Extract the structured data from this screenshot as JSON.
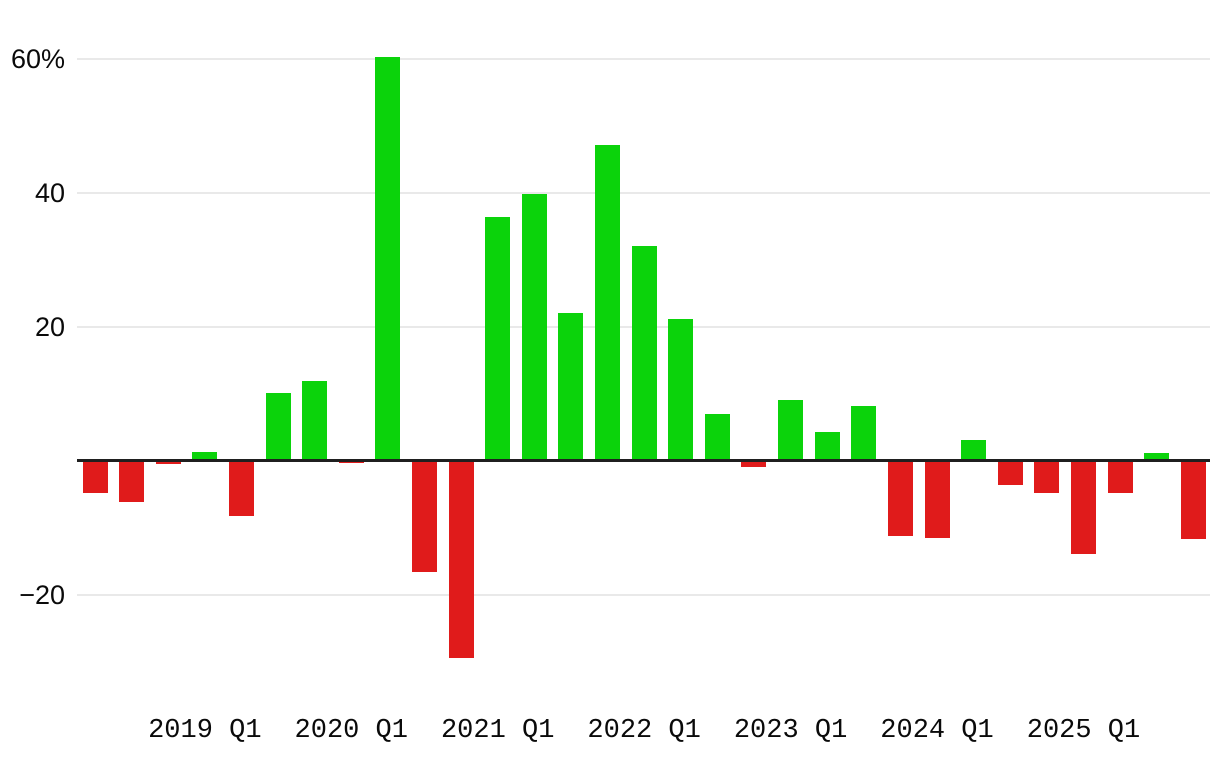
{
  "chart_data": {
    "type": "bar",
    "title": "",
    "xlabel": "",
    "ylabel": "",
    "grid": true,
    "legend": false,
    "ylim": [
      -32,
      66
    ],
    "unit": "%",
    "categories": [
      "2018 Q2",
      "2018 Q3",
      "2018 Q4",
      "2019 Q1",
      "2019 Q2",
      "2019 Q3",
      "2019 Q4",
      "2020 Q1",
      "2020 Q2",
      "2020 Q3",
      "2020 Q4",
      "2021 Q1",
      "2021 Q2",
      "2021 Q3",
      "2021 Q4",
      "2022 Q1",
      "2022 Q2",
      "2022 Q3",
      "2022 Q4",
      "2023 Q1",
      "2023 Q2",
      "2023 Q3",
      "2023 Q4",
      "2024 Q1",
      "2024 Q2",
      "2024 Q3",
      "2024 Q4",
      "2025 Q1",
      "2025 Q2",
      "2025 Q3",
      "2025 Q4"
    ],
    "values": [
      -4.8,
      -6.1,
      -0.5,
      1.3,
      -8.3,
      10.1,
      11.9,
      -0.4,
      60.3,
      -16.6,
      -29.4,
      36.4,
      39.8,
      22.0,
      47.2,
      32.0,
      21.2,
      7.0,
      -1.0,
      9.0,
      4.3,
      8.1,
      -11.3,
      -11.5,
      3.1,
      -3.6,
      -4.9,
      -14.0,
      -4.9,
      1.2,
      -11.7
    ],
    "colors": {
      "positive": "#0bd30b",
      "negative": "#e01b1b",
      "zero_line": "#1f1f1f",
      "gridline": "#e9e9e9",
      "text": "#0a0a0a"
    },
    "yticks": [
      {
        "value": 60,
        "label": "60%"
      },
      {
        "value": 40,
        "label": "40"
      },
      {
        "value": 20,
        "label": "20"
      },
      {
        "value": -20,
        "label": "−20"
      }
    ],
    "xticks": [
      {
        "index": 3,
        "label": "2019 Q1"
      },
      {
        "index": 7,
        "label": "2020 Q1"
      },
      {
        "index": 11,
        "label": "2021 Q1"
      },
      {
        "index": 15,
        "label": "2022 Q1"
      },
      {
        "index": 19,
        "label": "2023 Q1"
      },
      {
        "index": 23,
        "label": "2024 Q1"
      },
      {
        "index": 27,
        "label": "2025 Q1"
      }
    ]
  }
}
